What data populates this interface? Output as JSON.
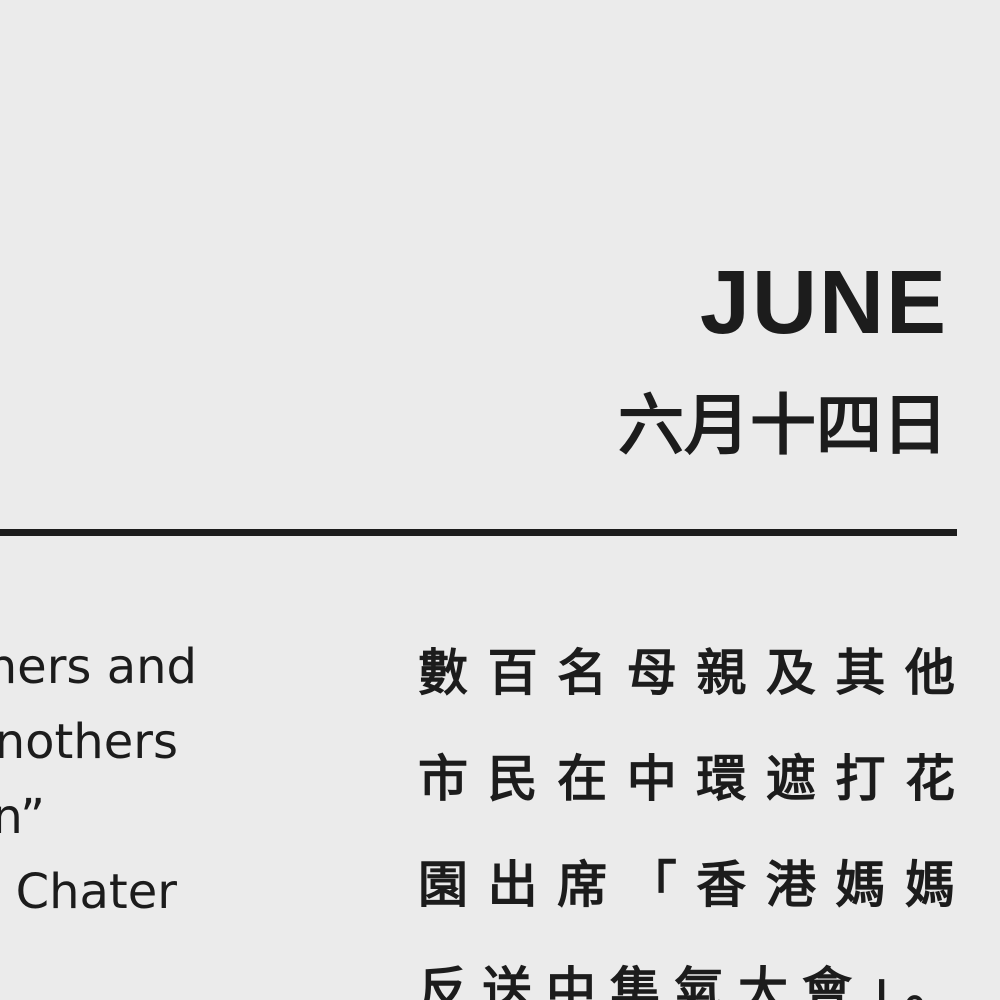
{
  "header": {
    "month": "JUNE",
    "date": "六月十四日"
  },
  "body": {
    "english_lines": [
      "hers and",
      "nothers",
      "n”",
      " Chater"
    ],
    "chinese_lines": [
      "數百名母親及其他",
      "市民在中環遮打花",
      "園出席「香港媽媽",
      "反送中集氣大會」。"
    ]
  }
}
